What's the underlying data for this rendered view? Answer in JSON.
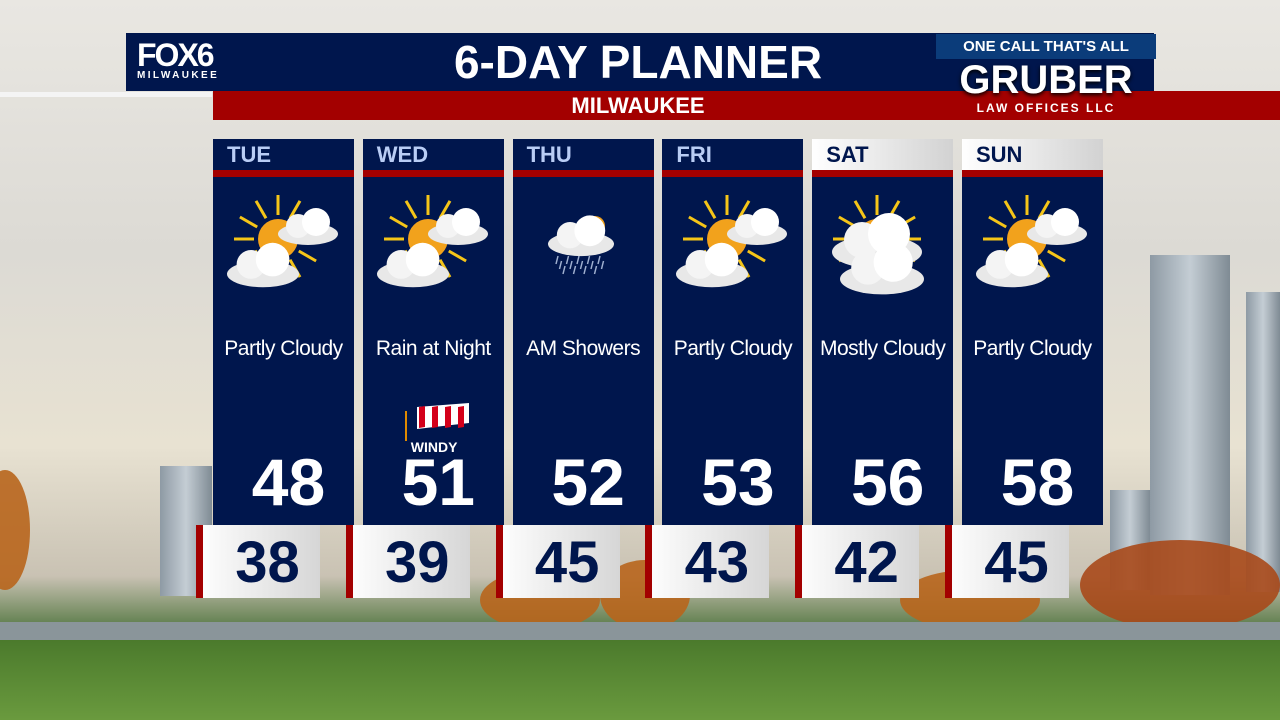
{
  "header": {
    "logo_text": "FOX6",
    "logo_sub": "MILWAUKEE",
    "title": "6-DAY PLANNER",
    "location": "MILWAUKEE"
  },
  "sponsor": {
    "tagline": "ONE CALL  THAT'S ALL",
    "name": "GRUBER",
    "subtitle": "LAW OFFICES LLC"
  },
  "colors": {
    "navy": "#00164d",
    "red": "#a30000",
    "header_text": "#b9cdf5"
  },
  "days": [
    {
      "day": "TUE",
      "condition": "Partly Cloudy",
      "icon": "partly-cloudy-icon",
      "high": "48",
      "low": "38",
      "style": "dark"
    },
    {
      "day": "WED",
      "condition": "Rain at Night",
      "icon": "partly-cloudy-icon",
      "high": "51",
      "low": "39",
      "style": "dark",
      "badge": "WINDY"
    },
    {
      "day": "THU",
      "condition": "AM Showers",
      "icon": "showers-icon",
      "high": "52",
      "low": "45",
      "style": "dark"
    },
    {
      "day": "FRI",
      "condition": "Partly Cloudy",
      "icon": "partly-cloudy-icon",
      "high": "53",
      "low": "43",
      "style": "dark"
    },
    {
      "day": "SAT",
      "condition": "Mostly Cloudy",
      "icon": "mostly-cloudy-icon",
      "high": "56",
      "low": "42",
      "style": "light"
    },
    {
      "day": "SUN",
      "condition": "Partly Cloudy",
      "icon": "partly-cloudy-icon",
      "high": "58",
      "low": "45",
      "style": "light"
    }
  ]
}
